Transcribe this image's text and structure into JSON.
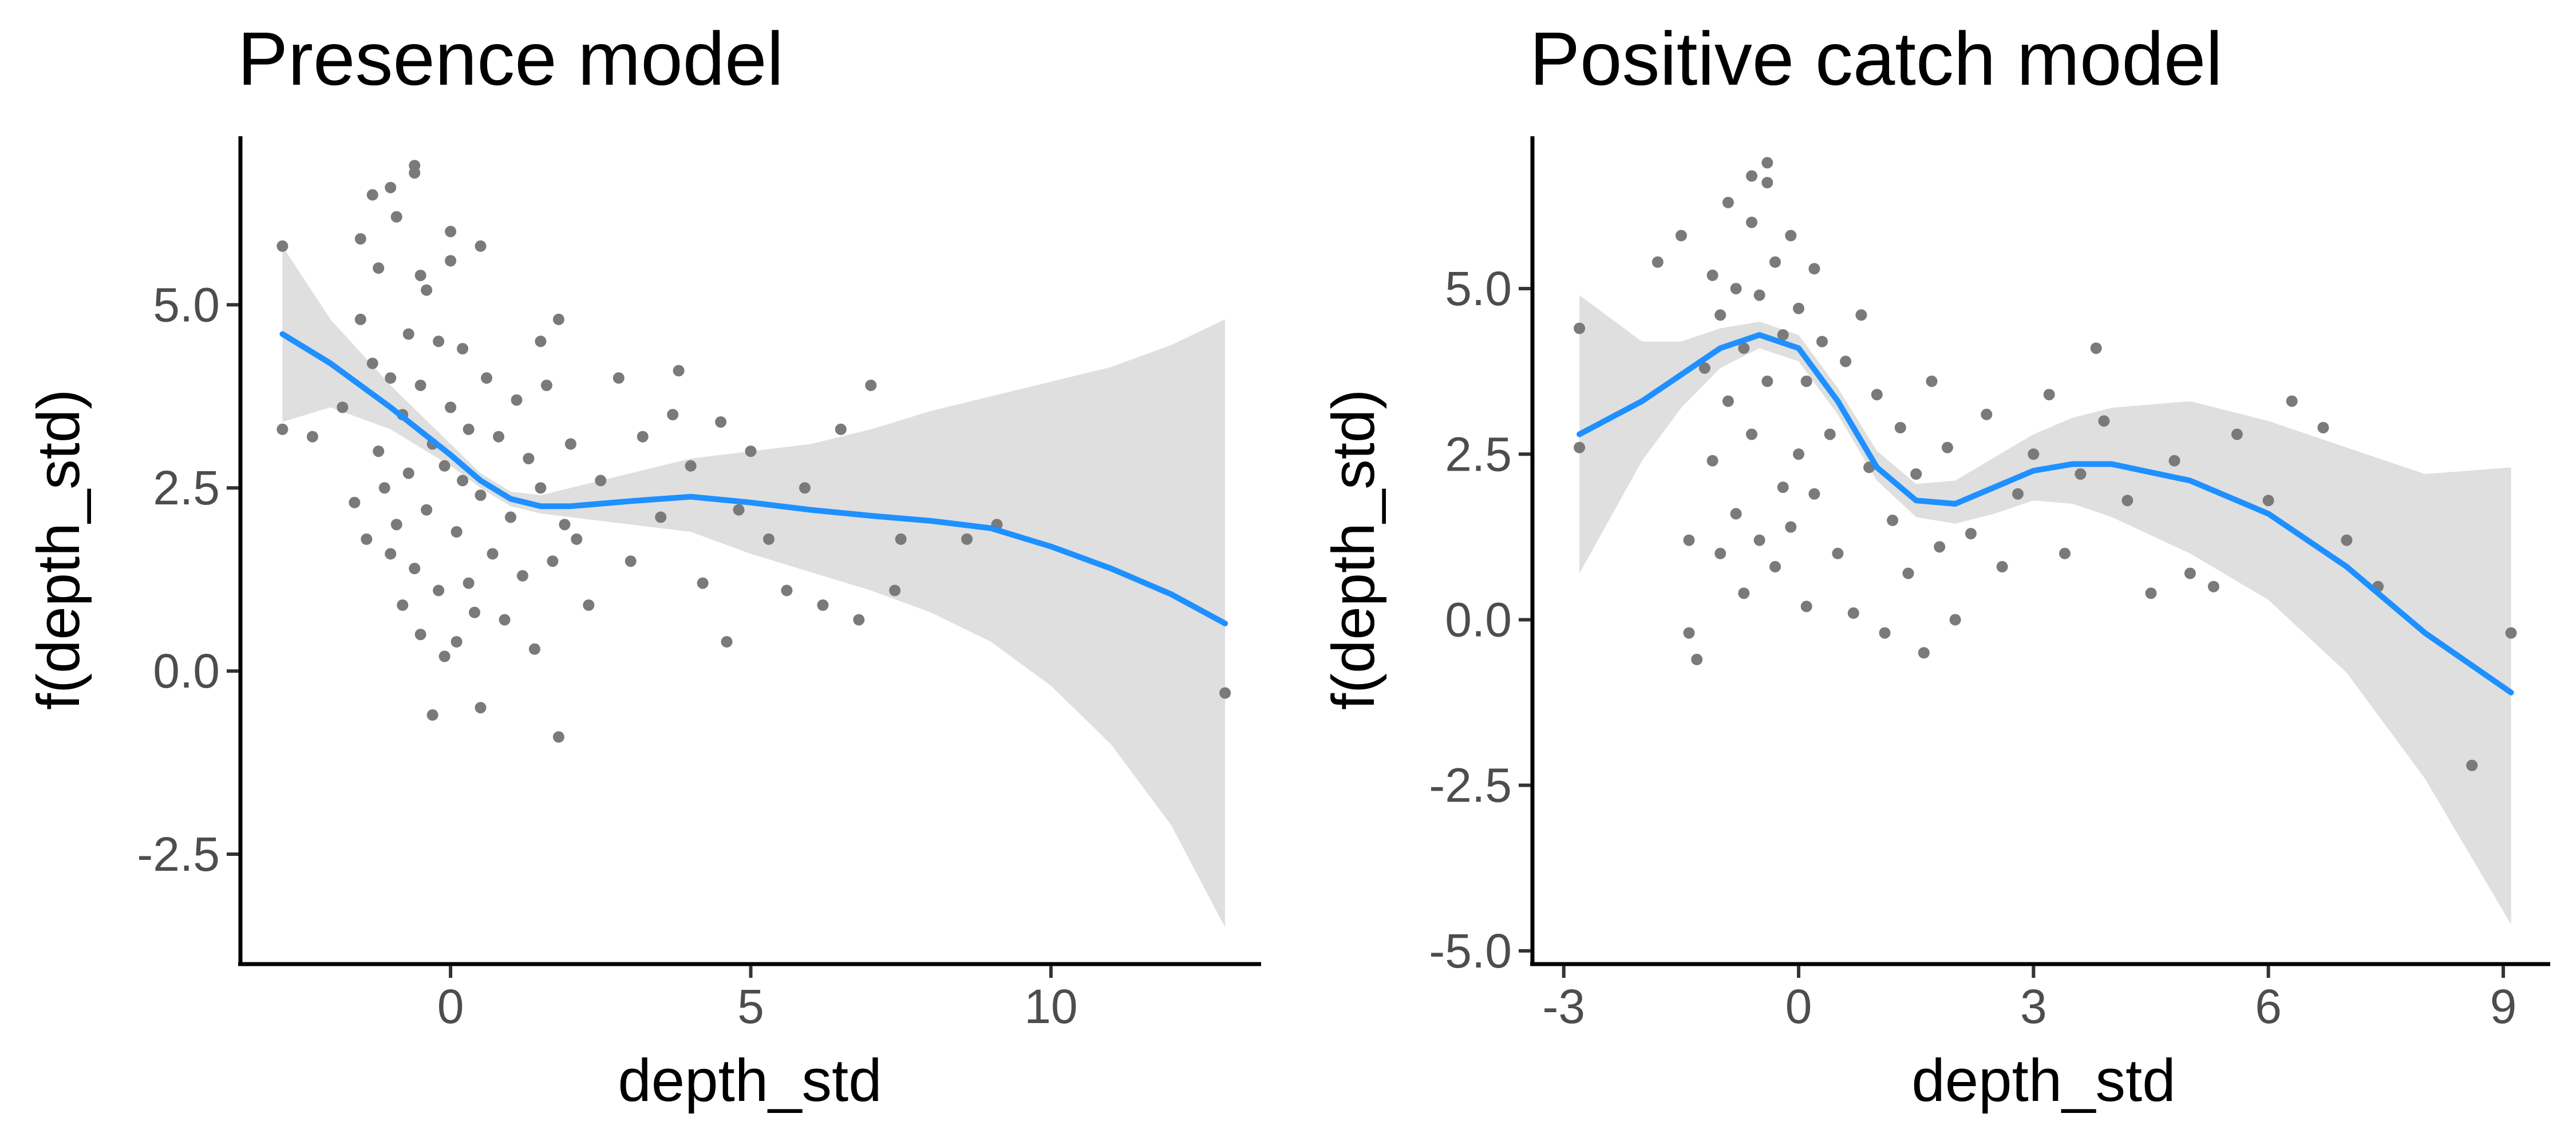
{
  "chart_data": [
    {
      "type": "scatter",
      "title": "Presence model",
      "xlabel": "depth_std",
      "ylabel": "f(depth_std)",
      "xlim": [
        -3.5,
        13.5
      ],
      "ylim": [
        -4.0,
        7.3
      ],
      "x_ticks": [
        0,
        5,
        10
      ],
      "x_tick_labels": [
        "0",
        "5",
        "10"
      ],
      "y_ticks": [
        -2.5,
        0,
        2.5,
        5
      ],
      "y_tick_labels": [
        "-2.5",
        "0.0",
        "2.5",
        "5.0"
      ],
      "point_color": "#7a7a7a",
      "smooth_color": "#1e90ff",
      "band_color": "#d9d9d9",
      "smooth": {
        "x": [
          -2.8,
          -2.0,
          -1.0,
          0.0,
          0.5,
          1.0,
          1.5,
          2.0,
          3.0,
          4.0,
          5.0,
          6.0,
          7.0,
          8.0,
          9.0,
          10.0,
          11.0,
          12.0,
          12.9
        ],
        "y": [
          4.6,
          4.2,
          3.6,
          2.95,
          2.6,
          2.35,
          2.25,
          2.25,
          2.32,
          2.38,
          2.3,
          2.2,
          2.12,
          2.05,
          1.95,
          1.7,
          1.4,
          1.05,
          0.65
        ],
        "lower": [
          3.4,
          3.6,
          3.3,
          2.8,
          2.5,
          2.25,
          2.15,
          2.1,
          2.0,
          1.9,
          1.6,
          1.35,
          1.1,
          0.8,
          0.4,
          -0.2,
          -1.0,
          -2.1,
          -3.5
        ],
        "upper": [
          5.8,
          4.8,
          3.9,
          3.1,
          2.7,
          2.45,
          2.4,
          2.5,
          2.7,
          2.9,
          3.0,
          3.1,
          3.3,
          3.55,
          3.75,
          3.95,
          4.15,
          4.45,
          4.8
        ]
      },
      "points": {
        "x": [
          -2.8,
          -2.8,
          -2.3,
          -1.8,
          -1.6,
          -1.5,
          -1.4,
          -1.3,
          -1.2,
          -1.2,
          -1.1,
          -1.0,
          -1.0,
          -0.9,
          -0.9,
          -0.8,
          -0.8,
          -0.7,
          -0.7,
          -0.6,
          -0.6,
          -0.5,
          -0.5,
          -0.4,
          -0.4,
          -0.3,
          -0.3,
          -0.2,
          -0.2,
          -0.1,
          -0.1,
          0.0,
          0.0,
          0.1,
          0.1,
          0.2,
          0.2,
          0.3,
          0.3,
          0.4,
          0.5,
          0.5,
          0.6,
          0.7,
          0.8,
          0.9,
          1.0,
          1.1,
          1.2,
          1.3,
          1.4,
          1.5,
          1.6,
          1.7,
          1.8,
          1.9,
          2.0,
          2.1,
          2.3,
          2.5,
          2.8,
          3.0,
          3.2,
          3.5,
          3.7,
          3.8,
          4.0,
          4.2,
          4.5,
          4.6,
          4.8,
          5.0,
          5.3,
          5.6,
          5.9,
          6.2,
          6.5,
          6.8,
          7.0,
          7.4,
          7.5,
          8.6,
          9.1,
          12.9,
          -1.5,
          -1.0,
          -0.5,
          0.0,
          0.5,
          -0.6,
          -1.3,
          1.5,
          1.8
        ],
        "y": [
          5.8,
          3.3,
          3.2,
          3.6,
          2.3,
          4.8,
          1.8,
          4.2,
          3.0,
          5.5,
          2.5,
          1.6,
          4.0,
          6.2,
          2.0,
          3.5,
          0.9,
          4.6,
          2.7,
          6.8,
          1.4,
          3.9,
          0.5,
          5.2,
          2.2,
          3.1,
          -0.6,
          4.5,
          1.1,
          2.8,
          0.2,
          5.6,
          3.6,
          1.9,
          0.4,
          4.4,
          2.6,
          1.2,
          3.3,
          0.8,
          2.4,
          -0.5,
          4.0,
          1.6,
          3.2,
          0.7,
          2.1,
          3.7,
          1.3,
          2.9,
          0.3,
          2.5,
          3.9,
          1.5,
          -0.9,
          2.0,
          3.1,
          1.8,
          0.9,
          2.6,
          4.0,
          1.5,
          3.2,
          2.1,
          3.5,
          4.1,
          2.8,
          1.2,
          3.4,
          0.4,
          2.2,
          3.0,
          1.8,
          1.1,
          2.5,
          0.9,
          3.3,
          0.7,
          3.9,
          1.1,
          1.8,
          1.8,
          2.0,
          -0.3,
          5.9,
          6.6,
          5.4,
          6.0,
          5.8,
          6.9,
          6.5,
          4.5,
          4.8
        ]
      }
    },
    {
      "type": "scatter",
      "title": "Positive catch model",
      "xlabel": "depth_std",
      "ylabel": "f(depth_std)",
      "xlim": [
        -3.4,
        9.6
      ],
      "ylim": [
        -5.2,
        7.3
      ],
      "x_ticks": [
        -3,
        0,
        3,
        6,
        9
      ],
      "x_tick_labels": [
        "-3",
        "0",
        "3",
        "6",
        "9"
      ],
      "y_ticks": [
        -5,
        -2.5,
        0,
        2.5,
        5
      ],
      "y_tick_labels": [
        "-5.0",
        "-2.5",
        "0.0",
        "2.5",
        "5.0"
      ],
      "point_color": "#7a7a7a",
      "smooth_color": "#1e90ff",
      "band_color": "#d9d9d9",
      "smooth": {
        "x": [
          -2.8,
          -2.0,
          -1.5,
          -1.0,
          -0.5,
          0.0,
          0.5,
          1.0,
          1.5,
          2.0,
          2.5,
          3.0,
          3.5,
          4.0,
          5.0,
          6.0,
          7.0,
          8.0,
          9.1
        ],
        "y": [
          2.8,
          3.3,
          3.7,
          4.1,
          4.3,
          4.1,
          3.3,
          2.3,
          1.8,
          1.75,
          2.0,
          2.25,
          2.35,
          2.35,
          2.1,
          1.6,
          0.8,
          -0.2,
          -1.1
        ],
        "lower": [
          0.7,
          2.4,
          3.2,
          3.8,
          4.1,
          3.9,
          3.1,
          2.1,
          1.55,
          1.45,
          1.6,
          1.8,
          1.75,
          1.55,
          1.0,
          0.3,
          -0.8,
          -2.4,
          -4.6
        ],
        "upper": [
          4.9,
          4.2,
          4.2,
          4.4,
          4.5,
          4.3,
          3.5,
          2.55,
          2.05,
          2.1,
          2.45,
          2.8,
          3.05,
          3.2,
          3.3,
          3.0,
          2.6,
          2.2,
          2.3
        ]
      },
      "points": {
        "x": [
          -2.8,
          -2.8,
          -1.5,
          -1.4,
          -1.4,
          -1.3,
          -1.2,
          -1.1,
          -1.1,
          -1.0,
          -1.0,
          -0.9,
          -0.9,
          -0.8,
          -0.8,
          -0.7,
          -0.7,
          -0.6,
          -0.6,
          -0.5,
          -0.5,
          -0.4,
          -0.4,
          -0.3,
          -0.3,
          -0.2,
          -0.2,
          -0.1,
          -0.1,
          0.0,
          0.0,
          0.1,
          0.1,
          0.2,
          0.2,
          0.3,
          0.4,
          0.5,
          0.6,
          0.7,
          0.8,
          0.9,
          1.0,
          1.1,
          1.2,
          1.3,
          1.4,
          1.5,
          1.6,
          1.7,
          1.8,
          1.9,
          2.0,
          2.2,
          2.4,
          2.6,
          2.8,
          3.0,
          3.2,
          3.4,
          3.6,
          3.8,
          3.9,
          4.2,
          4.5,
          4.8,
          5.0,
          5.3,
          5.6,
          6.0,
          6.3,
          6.7,
          7.0,
          7.4,
          8.6,
          9.1,
          -0.6,
          -0.4,
          -1.8
        ],
        "y": [
          4.4,
          2.6,
          5.8,
          1.2,
          -0.2,
          -0.6,
          3.8,
          5.2,
          2.4,
          4.6,
          1.0,
          6.3,
          3.3,
          5.0,
          1.6,
          4.1,
          0.4,
          6.0,
          2.8,
          4.9,
          1.2,
          6.6,
          3.6,
          5.4,
          0.8,
          4.3,
          2.0,
          5.8,
          1.4,
          4.7,
          2.5,
          3.6,
          0.2,
          5.3,
          1.9,
          4.2,
          2.8,
          1.0,
          3.9,
          0.1,
          4.6,
          2.3,
          3.4,
          -0.2,
          1.5,
          2.9,
          0.7,
          2.2,
          -0.5,
          3.6,
          1.1,
          2.6,
          0.0,
          1.3,
          3.1,
          0.8,
          1.9,
          2.5,
          3.4,
          1.0,
          2.2,
          4.1,
          3.0,
          1.8,
          0.4,
          2.4,
          0.7,
          0.5,
          2.8,
          1.8,
          3.3,
          2.9,
          1.2,
          0.5,
          -2.2,
          -0.2,
          6.7,
          6.9,
          5.4
        ]
      }
    }
  ]
}
